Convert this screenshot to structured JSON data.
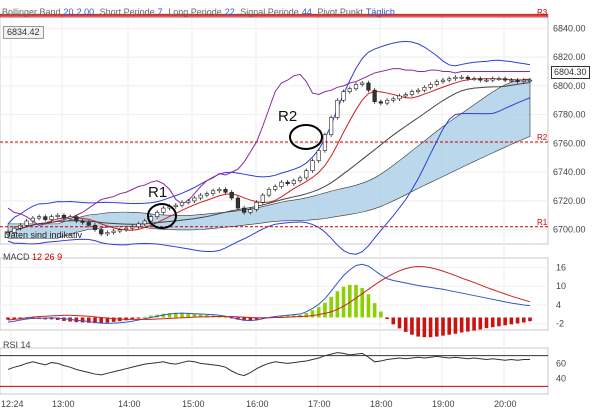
{
  "legend": {
    "bollinger_label": "Bollinger Band",
    "bollinger_params": "20",
    "bollinger_params2": "2.00",
    "short_label": "Short Periode",
    "short_value": "7",
    "long_label": "Long Periode",
    "long_value": "22",
    "signal_label": "Signal Periode",
    "signal_value": "44",
    "pivot_label": "Pivot Punkt",
    "pivot_value": "Täglich"
  },
  "price_box": "6834.42",
  "last_price": "6804.30",
  "note": "Daten sind indikativ",
  "annotations": {
    "r1": "R1",
    "r2": "R2"
  },
  "r_levels": {
    "r1_label": "R1",
    "r2_label": "R2",
    "r3_label": "R3"
  },
  "macd_label": {
    "name": "MACD",
    "p1": "12",
    "p2": "26",
    "p3": "9"
  },
  "rsi_label": {
    "name": "RSI",
    "p1": "14"
  },
  "colors": {
    "up_candle": "#ffffff",
    "down_candle": "#333333",
    "bollinger": "#2f3fd8",
    "short_ma": "#cc2222",
    "long_ma": "#444444",
    "ichimoku_cloud": "#a9cde6",
    "purple_line": "#8a2aa0",
    "macd_line": "#3355cc",
    "signal_line": "#cc2222",
    "hist_pos": "#8cd000",
    "hist_neg": "#cc1111",
    "pivot_r": "#cc0000"
  },
  "chart_data": [
    {
      "type": "candlestick",
      "x_ticks": [
        "12:24",
        "13:00",
        "14:00",
        "15:00",
        "16:00",
        "17:00",
        "18:00",
        "19:00",
        "20:00"
      ],
      "y_ticks": [
        6700,
        6720,
        6740,
        6760,
        6780,
        6800,
        6820,
        6840
      ],
      "ylim": [
        6690,
        6850
      ],
      "pivot_levels": {
        "R1": 6702,
        "R2": 6761,
        "R3": 6848
      },
      "close": [
        6698,
        6701,
        6703,
        6706,
        6708,
        6709,
        6707,
        6709,
        6710,
        6708,
        6709,
        6706,
        6705,
        6703,
        6700,
        6697,
        6698,
        6699,
        6700,
        6701,
        6702,
        6704,
        6706,
        6709,
        6712,
        6715,
        6716,
        6717,
        6719,
        6720,
        6722,
        6724,
        6725,
        6727,
        6728,
        6726,
        6722,
        6715,
        6712,
        6714,
        6719,
        6724,
        6728,
        6730,
        6733,
        6732,
        6734,
        6736,
        6741,
        6748,
        6755,
        6766,
        6778,
        6790,
        6796,
        6798,
        6801,
        6802,
        6797,
        6789,
        6788,
        6790,
        6791,
        6793,
        6794,
        6796,
        6797,
        6799,
        6801,
        6803,
        6804,
        6805,
        6806,
        6806,
        6805,
        6805,
        6804,
        6804,
        6805,
        6805,
        6804,
        6804,
        6803,
        6804,
        6804
      ],
      "series": [
        {
          "name": "Bollinger Band"
        },
        {
          "name": "Short Periode"
        },
        {
          "name": "Long Periode"
        }
      ]
    },
    {
      "type": "line",
      "name": "MACD",
      "y_ticks": [
        -2,
        4,
        10,
        16
      ],
      "ylim": [
        -4,
        19
      ],
      "series": [
        {
          "name": "MACD",
          "values": [
            -1.5,
            -1.2,
            -0.8,
            -0.5,
            -0.3,
            -0.2,
            -0.2,
            -0.1,
            -0.2,
            -0.4,
            -0.6,
            -0.9,
            -1.1,
            -1.3,
            -1.6,
            -1.8,
            -1.9,
            -1.8,
            -1.7,
            -1.5,
            -1.2,
            -0.8,
            -0.4,
            0.0,
            0.4,
            0.8,
            1.1,
            1.3,
            1.4,
            1.3,
            1.2,
            1.1,
            1.0,
            0.9,
            0.7,
            0.4,
            0.0,
            -0.5,
            -0.9,
            -1.0,
            -0.8,
            -0.4,
            0.0,
            0.3,
            0.5,
            0.7,
            0.9,
            1.1,
            1.8,
            2.9,
            4.2,
            6.0,
            8.4,
            11.0,
            13.4,
            15.2,
            16.6,
            17.0,
            16.4,
            15.0,
            13.6,
            12.4,
            11.8,
            11.4,
            11.0,
            10.6,
            10.2,
            9.9,
            9.6,
            9.3,
            9.0,
            8.6,
            8.2,
            7.8,
            7.4,
            7.0,
            6.6,
            6.2,
            5.8,
            5.4,
            5.0,
            4.6,
            4.3,
            4.0,
            3.8
          ]
        },
        {
          "name": "Signal",
          "values": [
            -0.8,
            -0.6,
            -0.4,
            -0.1,
            0.1,
            0.3,
            0.4,
            0.5,
            0.6,
            0.7,
            0.7,
            0.6,
            0.5,
            0.4,
            0.2,
            0.0,
            -0.2,
            -0.4,
            -0.5,
            -0.6,
            -0.6,
            -0.6,
            -0.6,
            -0.6,
            -0.5,
            -0.4,
            -0.3,
            -0.2,
            -0.1,
            0.0,
            0.1,
            0.2,
            0.2,
            0.3,
            0.3,
            0.3,
            0.3,
            0.2,
            0.1,
            0.0,
            -0.1,
            -0.1,
            -0.1,
            0.0,
            0.0,
            0.1,
            0.2,
            0.3,
            0.4,
            0.6,
            0.9,
            1.3,
            1.8,
            2.6,
            3.6,
            4.8,
            6.2,
            7.6,
            9.0,
            10.4,
            11.7,
            12.9,
            14.0,
            14.9,
            15.6,
            16.1,
            16.3,
            16.2,
            15.9,
            15.4,
            14.8,
            14.1,
            13.4,
            12.6,
            11.9,
            11.2,
            10.4,
            9.6,
            8.9,
            8.2,
            7.5,
            6.8,
            6.2,
            5.6,
            5.0
          ]
        }
      ]
    },
    {
      "type": "line",
      "name": "RSI",
      "y_ticks": [
        40,
        60
      ],
      "ylim": [
        20,
        80
      ],
      "levels": [
        70,
        30
      ],
      "values": [
        52,
        55,
        57,
        60,
        62,
        60,
        58,
        61,
        60,
        57,
        55,
        52,
        50,
        48,
        46,
        45,
        47,
        49,
        51,
        53,
        55,
        57,
        59,
        60,
        61,
        62,
        60,
        59,
        61,
        63,
        62,
        60,
        59,
        58,
        57,
        55,
        50,
        46,
        44,
        48,
        53,
        57,
        60,
        62,
        61,
        60,
        61,
        62,
        63,
        65,
        67,
        70,
        72,
        74,
        73,
        71,
        72,
        73,
        68,
        62,
        63,
        65,
        66,
        67,
        66,
        67,
        68,
        67,
        68,
        69,
        68,
        67,
        68,
        67,
        66,
        67,
        66,
        65,
        66,
        65,
        64,
        65,
        64,
        65,
        65
      ]
    }
  ]
}
